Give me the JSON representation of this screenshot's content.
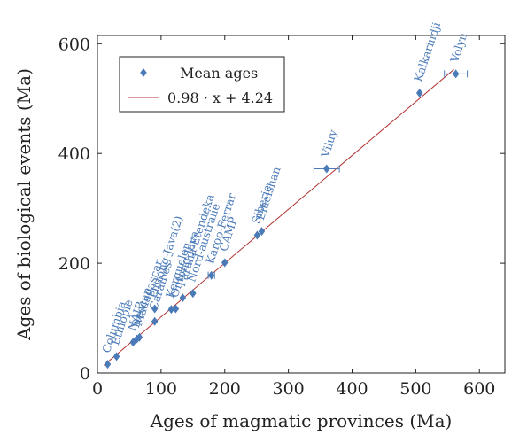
{
  "chart_data": {
    "type": "scatter",
    "xlabel": "Ages of magmatic provinces (Ma)",
    "ylabel": "Ages of biological events (Ma)",
    "xlim": [
      0,
      640
    ],
    "ylim": [
      0,
      615
    ],
    "xticks": [
      0,
      100,
      200,
      300,
      400,
      500,
      600
    ],
    "yticks": [
      0,
      200,
      400,
      600
    ],
    "legend_position": "top-left",
    "colors": {
      "points": "#4a7ab8",
      "fit": "#b03030"
    },
    "series": [
      {
        "name": "Mean ages",
        "points": [
          {
            "label": "Columbia",
            "x": 16,
            "y": 16,
            "xerr": 0
          },
          {
            "label": "Ethiopie",
            "x": 30,
            "y": 30,
            "xerr": 0
          },
          {
            "label": "NAIP",
            "x": 56,
            "y": 56,
            "xerr": 0
          },
          {
            "label": "Deccan",
            "x": 62,
            "y": 62,
            "xerr": 0
          },
          {
            "label": "Madagascar",
            "x": 66,
            "y": 65,
            "xerr": 0
          },
          {
            "label": "Caraibes",
            "x": 90,
            "y": 94,
            "xerr": 0
          },
          {
            "label": "Ontong-Java(2)",
            "x": 90,
            "y": 117,
            "xerr": 0
          },
          {
            "label": "Kerguelen",
            "x": 116,
            "y": 116,
            "xerr": 0
          },
          {
            "label": "Ontong-Java",
            "x": 123,
            "y": 117,
            "xerr": 0
          },
          {
            "label": "Parana-Etendeka",
            "x": 134,
            "y": 137,
            "xerr": 0
          },
          {
            "label": "Nord-australie",
            "x": 150,
            "y": 145,
            "xerr": 0
          },
          {
            "label": "Karoo-Ferrar",
            "x": 179,
            "y": 178,
            "xerr": 5
          },
          {
            "label": "CAMP",
            "x": 200,
            "y": 201,
            "xerr": 0
          },
          {
            "label": "Siberie",
            "x": 251,
            "y": 251,
            "xerr": 0
          },
          {
            "label": "Emeishan",
            "x": 258,
            "y": 258,
            "xerr": 0
          },
          {
            "label": "Viluy",
            "x": 360,
            "y": 372,
            "xerr": 20
          },
          {
            "label": "Kalkarindji",
            "x": 506,
            "y": 510,
            "xerr": 0
          },
          {
            "label": "Volyn",
            "x": 563,
            "y": 545,
            "xerr": 18
          }
        ]
      }
    ],
    "fit": {
      "name": "0.98 · x + 4.24",
      "slope": 0.98,
      "intercept": 4.24,
      "x_range": [
        10,
        560
      ]
    }
  }
}
